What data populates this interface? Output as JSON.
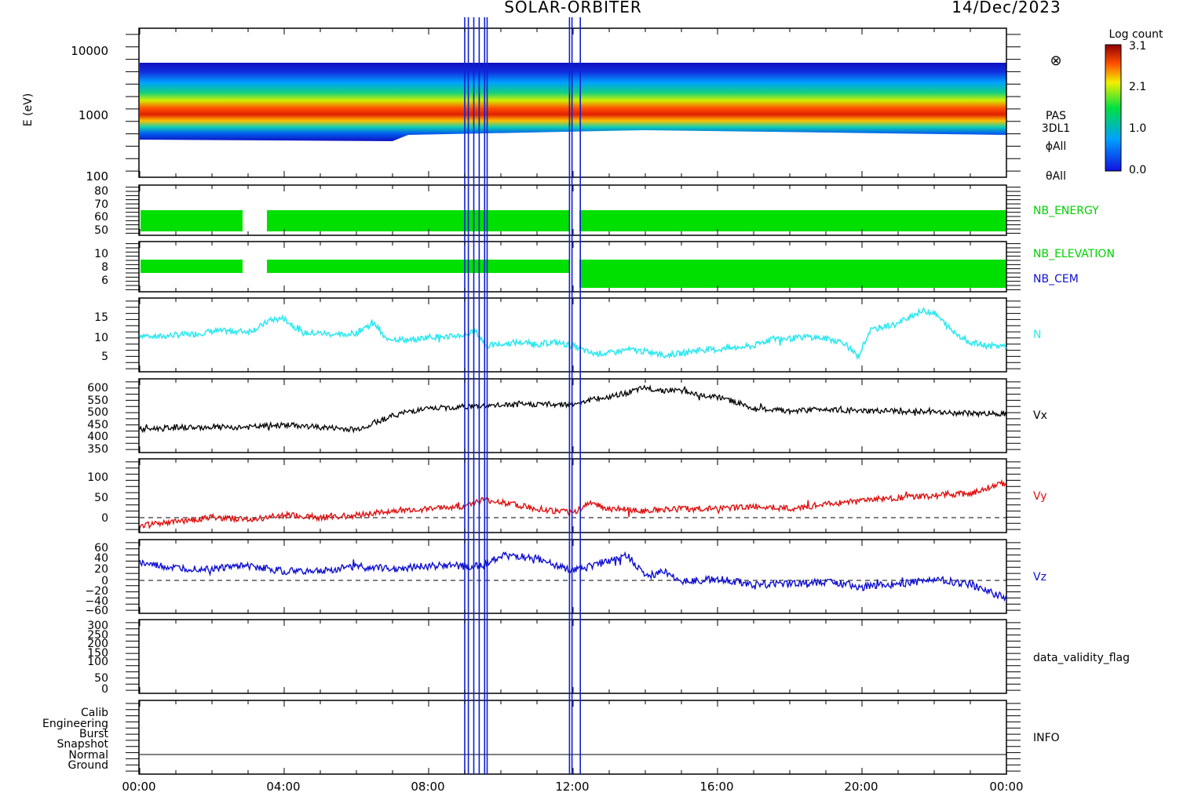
{
  "header": {
    "mission": "SOLAR-ORBITER",
    "date": "14/Dec/2023"
  },
  "colorbar": {
    "title": "Log count",
    "ticks": [
      "3.1",
      "2.1",
      "1.0",
      "0.0"
    ]
  },
  "x_axis": {
    "tick_labels": [
      "00:00",
      "04:00",
      "08:00",
      "12:00",
      "16:00",
      "20:00",
      "00:00"
    ]
  },
  "panels": {
    "energy": {
      "ylabel": "E (eV)",
      "tick_labels": [
        "10000",
        "1000",
        "100"
      ],
      "side_labels": [
        "PAS",
        "3DL1",
        "ϕAll",
        "θAll"
      ],
      "symbol": "⊗"
    },
    "nb_energy": {
      "tick_labels": [
        "80",
        "70",
        "60",
        "50"
      ],
      "side_label": "NB_ENERGY"
    },
    "nb_elev": {
      "tick_labels": [
        "10",
        "8",
        "6"
      ],
      "side_labels": [
        "NB_ELEVATION",
        "NB_CEM"
      ]
    },
    "density": {
      "tick_labels": [
        "15",
        "10",
        "5"
      ],
      "side_label": "N"
    },
    "vx": {
      "tick_labels": [
        "600",
        "550",
        "500",
        "450",
        "400",
        "350"
      ],
      "side_label": "Vx"
    },
    "vy": {
      "tick_labels": [
        "100",
        "50",
        "0"
      ],
      "side_label": "Vy"
    },
    "vz": {
      "tick_labels": [
        "60",
        "40",
        "20",
        "0",
        "−20",
        "−40",
        "−60"
      ],
      "side_label": "Vz"
    },
    "validity": {
      "tick_labels": [
        "300",
        "250",
        "200",
        "150",
        "100",
        "50",
        "0"
      ],
      "side_label": "data_validity_flag"
    },
    "info": {
      "tick_labels": [
        "Calib",
        "Engineering",
        "Burst",
        "Snapshot",
        "Normal",
        "Ground"
      ],
      "side_label": "INFO"
    }
  },
  "colors": {
    "nb": "#00e000",
    "density": "#30e8f0",
    "vx": "#000000",
    "vy": "#e01010",
    "vz": "#1010d0",
    "markers": "#1020d0"
  },
  "chart_data": {
    "type": "line",
    "x_range_hours": [
      0,
      24
    ],
    "marker_times_hours": [
      9.0,
      9.1,
      9.25,
      9.4,
      9.55,
      9.62,
      11.9,
      11.97,
      12.2
    ],
    "series": [
      {
        "name": "N",
        "x": [
          0,
          0.5,
          1,
          1.5,
          2,
          2.5,
          3,
          3.3,
          3.6,
          4,
          4.5,
          5,
          5.5,
          6,
          6.2,
          6.5,
          6.8,
          7,
          7.5,
          8,
          8.5,
          9,
          9.3,
          9.6,
          10,
          10.5,
          11,
          11.5,
          12,
          12.5,
          13,
          13.5,
          14,
          14.5,
          15,
          15.5,
          16,
          16.5,
          17,
          17.5,
          18,
          18.5,
          19,
          19.5,
          19.9,
          20.2,
          20.5,
          21,
          21.3,
          21.7,
          22,
          22.5,
          23,
          23.5,
          24
        ],
        "y": [
          10,
          9.5,
          10,
          10.2,
          11,
          11,
          11,
          12,
          14,
          14.5,
          10.5,
          10.5,
          10,
          10.5,
          12,
          13,
          9,
          9,
          8.5,
          9.5,
          9.5,
          10,
          11,
          7,
          7.5,
          8,
          7.5,
          8,
          7,
          5,
          5,
          6,
          5.5,
          4.5,
          5,
          6,
          6,
          6.5,
          7,
          9,
          9,
          9.5,
          9,
          8,
          4,
          11,
          12,
          13,
          15,
          16.5,
          16,
          11,
          8,
          7,
          7
        ]
      },
      {
        "name": "Vx",
        "x": [
          0,
          1,
          2,
          3,
          4,
          5,
          6,
          6.5,
          7,
          7.5,
          8,
          9,
          10,
          11,
          12,
          12.5,
          13,
          13.5,
          14,
          14.5,
          15,
          15.5,
          16,
          16.5,
          17,
          18,
          19,
          20,
          21,
          22,
          23,
          24
        ],
        "y": [
          420,
          430,
          430,
          430,
          440,
          430,
          420,
          450,
          480,
          500,
          510,
          520,
          525,
          530,
          530,
          550,
          560,
          580,
          600,
          590,
          590,
          570,
          560,
          540,
          510,
          500,
          510,
          500,
          500,
          495,
          490,
          490
        ]
      },
      {
        "name": "Vy",
        "x": [
          0,
          1,
          2,
          3,
          4,
          5,
          6,
          7,
          8,
          9,
          9.5,
          10,
          11,
          12,
          12.5,
          13,
          14,
          15,
          16,
          17,
          18,
          19,
          20,
          21,
          22,
          23,
          23.7,
          24
        ],
        "y": [
          -5,
          5,
          15,
          10,
          20,
          15,
          20,
          30,
          35,
          40,
          55,
          50,
          35,
          25,
          50,
          35,
          30,
          35,
          35,
          40,
          35,
          45,
          55,
          60,
          65,
          70,
          90,
          95
        ]
      },
      {
        "name": "Vz",
        "x": [
          0,
          1,
          2,
          3,
          4,
          5,
          6,
          7,
          8,
          9,
          9.5,
          10,
          11,
          12,
          12.5,
          13,
          13.5,
          14,
          14.5,
          15,
          16,
          17,
          18,
          19,
          20,
          21,
          22,
          23,
          24
        ],
        "y": [
          25,
          15,
          15,
          20,
          10,
          10,
          20,
          15,
          20,
          20,
          20,
          40,
          35,
          10,
          20,
          30,
          40,
          0,
          10,
          -10,
          -5,
          -15,
          -15,
          -10,
          -20,
          -15,
          -5,
          -15,
          -40
        ]
      }
    ]
  }
}
